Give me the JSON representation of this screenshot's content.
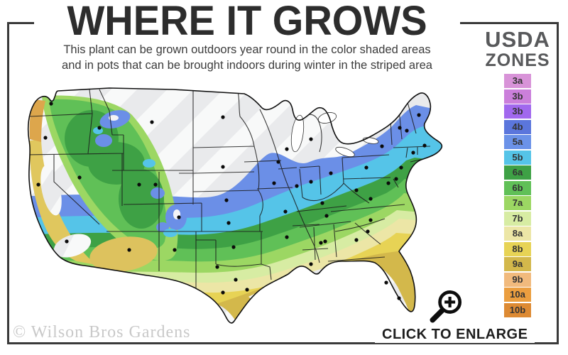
{
  "header": {
    "title": "WHERE IT GROWS",
    "subtitle_line1": "This plant can be grown outdoors year round in the color shaded areas",
    "subtitle_line2": "and in pots that can be brought indoors during winter in the striped area"
  },
  "legend": {
    "title_line1": "USDA",
    "title_line2": "ZONES",
    "zones": [
      {
        "label": "3a",
        "color": "#d893d8"
      },
      {
        "label": "3b",
        "color": "#cb7fdb"
      },
      {
        "label": "3b",
        "color": "#a168ee"
      },
      {
        "label": "4b",
        "color": "#5b76dc"
      },
      {
        "label": "5a",
        "color": "#6b92e8"
      },
      {
        "label": "5b",
        "color": "#55c4e8"
      },
      {
        "label": "6a",
        "color": "#3ea145"
      },
      {
        "label": "6b",
        "color": "#60c057"
      },
      {
        "label": "7a",
        "color": "#9cd763"
      },
      {
        "label": "7b",
        "color": "#d7eca3"
      },
      {
        "label": "8a",
        "color": "#ece6a6"
      },
      {
        "label": "8b",
        "color": "#e7d355"
      },
      {
        "label": "9a",
        "color": "#d3b84b"
      },
      {
        "label": "9b",
        "color": "#f1ba7d"
      },
      {
        "label": "10a",
        "color": "#eb9e3f"
      },
      {
        "label": "10b",
        "color": "#dd8a33"
      }
    ]
  },
  "footer": {
    "watermark": "© Wilson Bros Gardens",
    "enlarge_label": "CLICK TO ENLARGE"
  },
  "icons": {
    "enlarge": "magnifier-plus-icon"
  },
  "colors": {
    "frame": "#3a3a3a",
    "title_text": "#2d2d2d",
    "legend_title_text": "#58595b",
    "striped_area_gray": "#e9eaec"
  }
}
